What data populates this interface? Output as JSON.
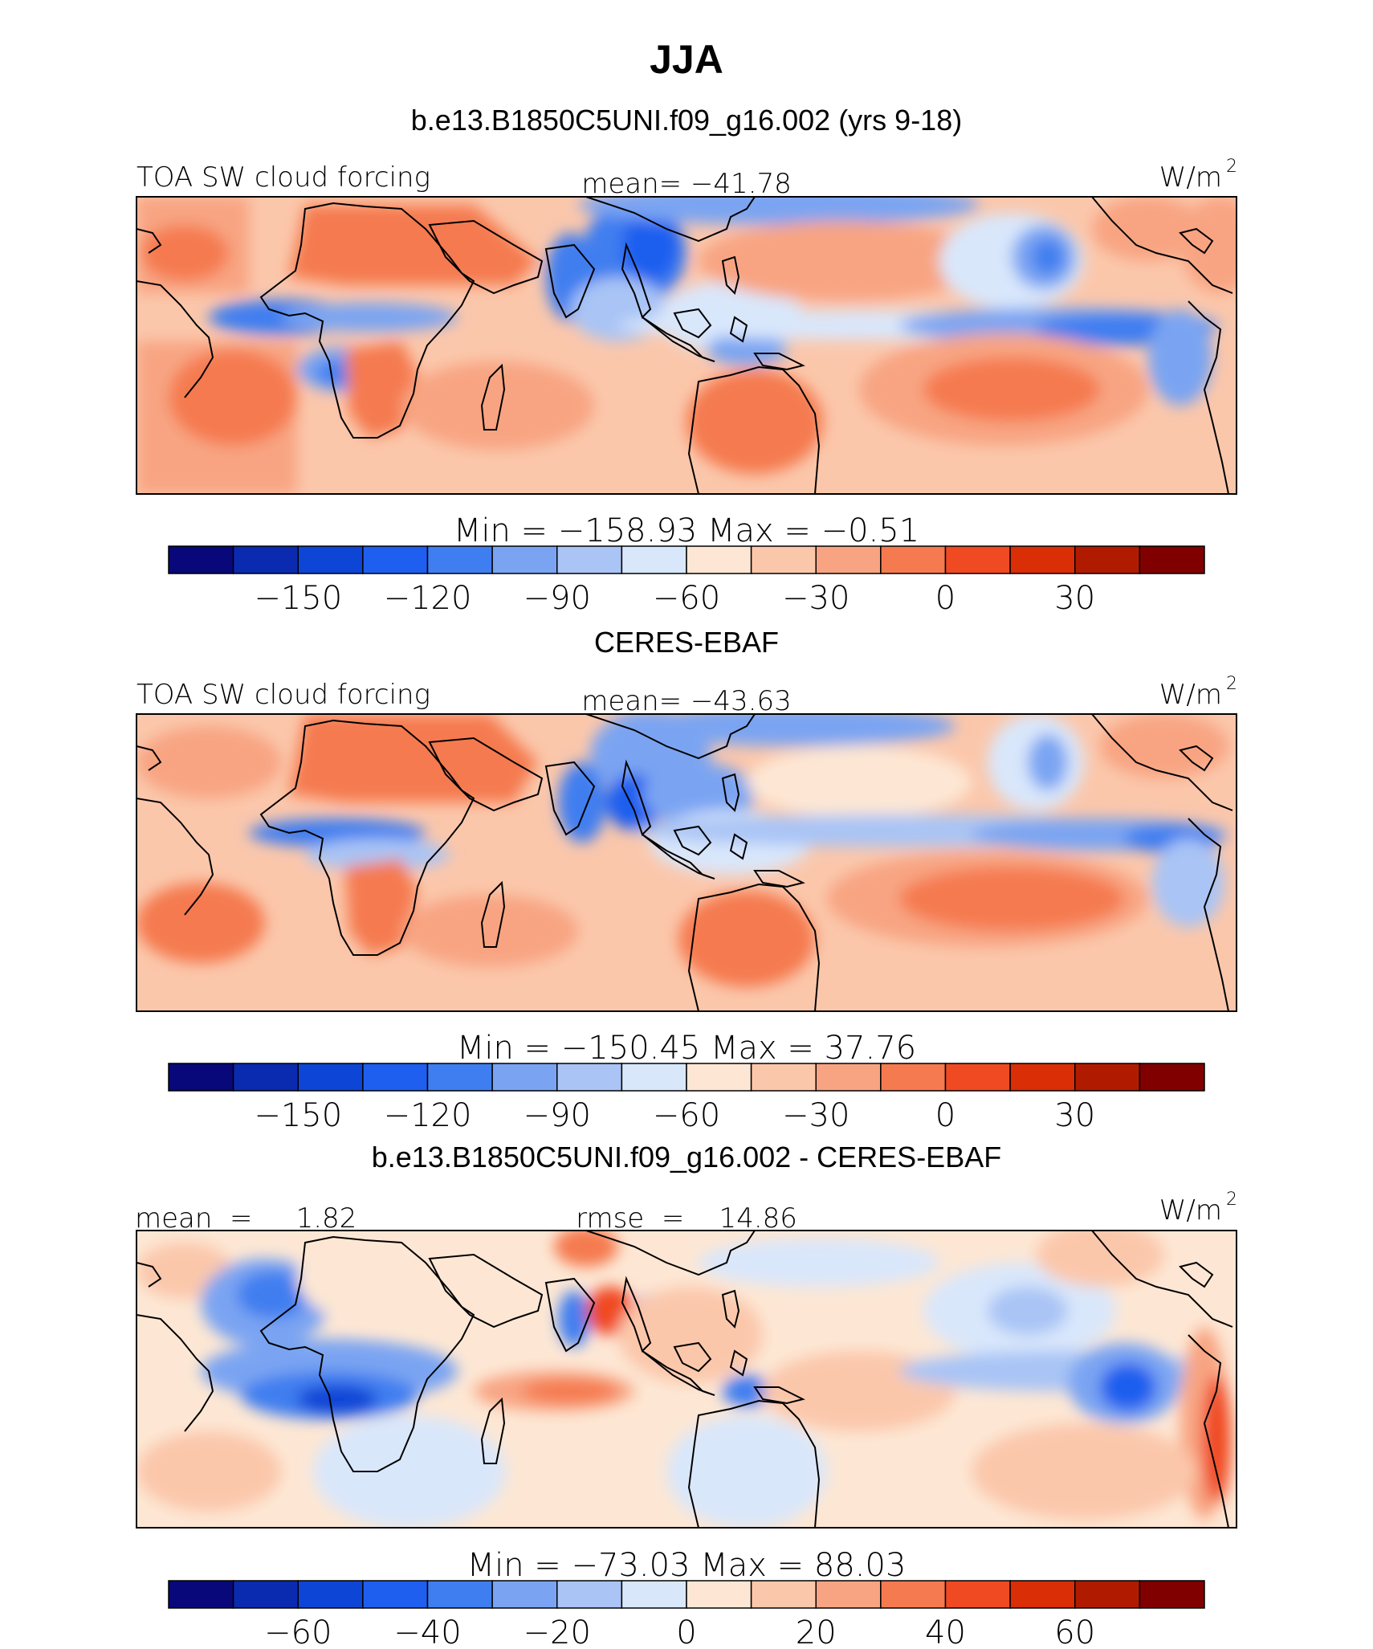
{
  "figure": {
    "title": "JJA",
    "panels": [
      {
        "header": "b.e13.B1850C5UNI.f09_g16.002 (yrs 9-18)",
        "left_label": "TOA SW cloud forcing",
        "center_label": "mean=  −41.78",
        "units": "W/m",
        "units_exp": "2",
        "minmax": "Min  =  −158.93  Max  =    −0.51"
      },
      {
        "header": "CERES-EBAF",
        "left_label": "TOA SW cloud forcing",
        "center_label": "mean=  −43.63",
        "units": "W/m",
        "units_exp": "2",
        "minmax": "Min  =  −150.45  Max  =    37.76"
      },
      {
        "header": "b.e13.B1850C5UNI.f09_g16.002 - CERES-EBAF",
        "left_label": "mean  =     1.82",
        "center_label": "rmse  =    14.86",
        "units": "W/m",
        "units_exp": "2",
        "minmax": "Min  =  −73.03  Max  =    88.03"
      }
    ],
    "colorbars": [
      {
        "colors": [
          "#08087a",
          "#0a2bb0",
          "#0d45d6",
          "#1f5fef",
          "#3f7ef0",
          "#7aa4f2",
          "#a9c4f5",
          "#d9e7fb",
          "#fde7d4",
          "#fbc7ab",
          "#f8a482",
          "#f57a50",
          "#f04a22",
          "#d92e06",
          "#b01b00",
          "#800000"
        ],
        "labels": [
          "−150",
          "−120",
          "−90",
          "−60",
          "−30",
          "0",
          "30"
        ]
      },
      {
        "colors": [
          "#08087a",
          "#0a2bb0",
          "#0d45d6",
          "#1f5fef",
          "#3f7ef0",
          "#7aa4f2",
          "#a9c4f5",
          "#d9e7fb",
          "#fde7d4",
          "#fbc7ab",
          "#f8a482",
          "#f57a50",
          "#f04a22",
          "#d92e06",
          "#b01b00",
          "#800000"
        ],
        "labels": [
          "−150",
          "−120",
          "−90",
          "−60",
          "−30",
          "0",
          "30"
        ]
      },
      {
        "colors": [
          "#08087a",
          "#0a2bb0",
          "#0d45d6",
          "#1f5fef",
          "#3f7ef0",
          "#7aa4f2",
          "#a9c4f5",
          "#d9e7fb",
          "#fde7d4",
          "#fbc7ab",
          "#f8a482",
          "#f57a50",
          "#f04a22",
          "#d92e06",
          "#b01b00",
          "#800000"
        ],
        "labels": [
          "−60",
          "−40",
          "−20",
          "0",
          "20",
          "40",
          "60"
        ]
      }
    ]
  }
}
